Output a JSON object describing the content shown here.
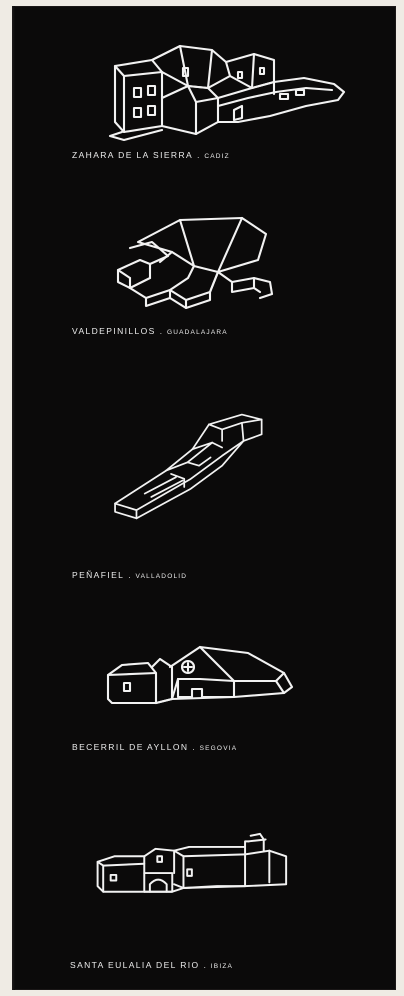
{
  "colors": {
    "background": "#0b0a0a",
    "line": "#f2f2f2",
    "page": "#efebe4"
  },
  "sketches": [
    {
      "place": "ZAHARA DE LA SIERRA",
      "separator": ".",
      "province": "CADIZ"
    },
    {
      "place": "VALDEPINILLOS",
      "separator": ".",
      "province": "GUADALAJARA"
    },
    {
      "place": "PEÑAFIEL",
      "separator": ".",
      "province": "VALLADOLID"
    },
    {
      "place": "BECERRIL DE AYLLON",
      "separator": ".",
      "province": "SEGOVIA"
    },
    {
      "place": "SANTA EULALIA DEL RIO",
      "separator": ".",
      "province": "IBIZA"
    }
  ]
}
